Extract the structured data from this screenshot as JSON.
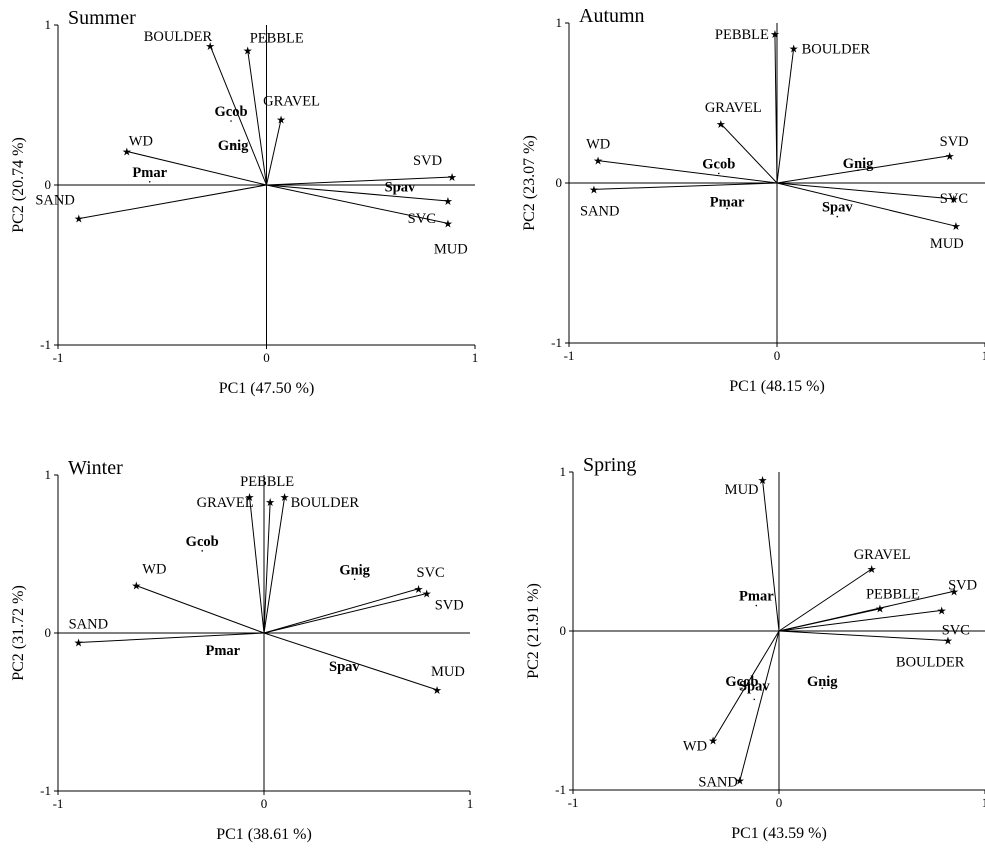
{
  "chart_data": [
    {
      "type": "scatter",
      "title": "Summer",
      "xlabel": "PC1 (47.50 %)",
      "ylabel": "PC2 (20.74 %)",
      "xlim": [
        -1,
        1
      ],
      "ylim": [
        -1,
        1
      ],
      "xticks": [
        "-1",
        "0",
        "1"
      ],
      "yticks": [
        "-1",
        "0",
        "1"
      ],
      "grid": false,
      "variables": [
        {
          "name": "BOULDER",
          "x": -0.27,
          "y": 0.87
        },
        {
          "name": "PEBBLE",
          "x": -0.09,
          "y": 0.84
        },
        {
          "name": "GRAVEL",
          "x": 0.07,
          "y": 0.41
        },
        {
          "name": "WD",
          "x": -0.67,
          "y": 0.21
        },
        {
          "name": "SAND",
          "x": -0.9,
          "y": -0.21
        },
        {
          "name": "SVD",
          "x": 0.89,
          "y": 0.05
        },
        {
          "name": "SVC",
          "x": 0.87,
          "y": -0.1
        },
        {
          "name": "MUD",
          "x": 0.87,
          "y": -0.24
        }
      ],
      "species": [
        {
          "name": "Gcob",
          "x": -0.17,
          "y": 0.4
        },
        {
          "name": "Gnig",
          "x": -0.16,
          "y": 0.25
        },
        {
          "name": "Pmar",
          "x": -0.56,
          "y": 0.02
        },
        {
          "name": "Spav",
          "x": 0.64,
          "y": -0.01
        }
      ]
    },
    {
      "type": "scatter",
      "title": "Autumn",
      "xlabel": "PC1 (48.15 %)",
      "ylabel": "PC2 (23.07 %)",
      "xlim": [
        -1,
        1
      ],
      "ylim": [
        -1,
        1
      ],
      "xticks": [
        "-1",
        "0",
        "1"
      ],
      "yticks": [
        "-1",
        "0",
        "1"
      ],
      "grid": false,
      "variables": [
        {
          "name": "PEBBLE",
          "x": -0.01,
          "y": 0.93
        },
        {
          "name": "BOULDER",
          "x": 0.08,
          "y": 0.84
        },
        {
          "name": "GRAVEL",
          "x": -0.27,
          "y": 0.37
        },
        {
          "name": "WD",
          "x": -0.86,
          "y": 0.14
        },
        {
          "name": "SAND",
          "x": -0.88,
          "y": -0.04
        },
        {
          "name": "SVD",
          "x": 0.83,
          "y": 0.17
        },
        {
          "name": "SVC",
          "x": 0.85,
          "y": -0.1
        },
        {
          "name": "MUD",
          "x": 0.86,
          "y": -0.27
        }
      ],
      "species": [
        {
          "name": "Gcob",
          "x": -0.28,
          "y": 0.06
        },
        {
          "name": "Gnig",
          "x": 0.39,
          "y": 0.08
        },
        {
          "name": "Pmar",
          "x": -0.24,
          "y": -0.16
        },
        {
          "name": "Spav",
          "x": 0.29,
          "y": -0.21
        }
      ]
    },
    {
      "type": "scatter",
      "title": "Winter",
      "xlabel": "PC1 (38.61 %)",
      "ylabel": "PC2 (31.72 %)",
      "xlim": [
        -1,
        1
      ],
      "ylim": [
        -1,
        1
      ],
      "xticks": [
        "-1",
        "0",
        "1"
      ],
      "yticks": [
        "-1",
        "0",
        "1"
      ],
      "grid": false,
      "variables": [
        {
          "name": "PEBBLE",
          "x": 0.03,
          "y": 0.83
        },
        {
          "name": "GRAVEL",
          "x": -0.07,
          "y": 0.86
        },
        {
          "name": "BOULDER",
          "x": 0.1,
          "y": 0.86
        },
        {
          "name": "WD",
          "x": -0.62,
          "y": 0.3
        },
        {
          "name": "SAND",
          "x": -0.9,
          "y": -0.06
        },
        {
          "name": "SVC",
          "x": 0.75,
          "y": 0.28
        },
        {
          "name": "SVD",
          "x": 0.79,
          "y": 0.25
        },
        {
          "name": "MUD",
          "x": 0.84,
          "y": -0.36
        }
      ],
      "species": [
        {
          "name": "Gcob",
          "x": -0.3,
          "y": 0.52
        },
        {
          "name": "Gnig",
          "x": 0.44,
          "y": 0.34
        },
        {
          "name": "Pmar",
          "x": -0.2,
          "y": -0.1
        },
        {
          "name": "Spav",
          "x": 0.39,
          "y": -0.21
        }
      ]
    },
    {
      "type": "scatter",
      "title": "Spring",
      "xlabel": "PC1 (43.59 %)",
      "ylabel": "PC2 (21.91 %)",
      "xlim": [
        -1,
        1
      ],
      "ylim": [
        -1,
        1
      ],
      "xticks": [
        "-1",
        "0",
        "1"
      ],
      "yticks": [
        "-1",
        "0",
        "1"
      ],
      "grid": false,
      "variables": [
        {
          "name": "MUD",
          "x": -0.08,
          "y": 0.95
        },
        {
          "name": "GRAVEL",
          "x": 0.45,
          "y": 0.39
        },
        {
          "name": "SVD",
          "x": 0.85,
          "y": 0.25
        },
        {
          "name": "PEBBLE",
          "x": 0.49,
          "y": 0.14
        },
        {
          "name": "SVC",
          "x": 0.79,
          "y": 0.13
        },
        {
          "name": "BOULDER",
          "x": 0.82,
          "y": -0.06
        },
        {
          "name": "WD",
          "x": -0.32,
          "y": -0.69
        },
        {
          "name": "SAND",
          "x": -0.19,
          "y": -0.94
        }
      ],
      "species": [
        {
          "name": "Pmar",
          "x": -0.11,
          "y": 0.16
        },
        {
          "name": "Gcob",
          "x": -0.18,
          "y": -0.36
        },
        {
          "name": "Spav",
          "x": -0.12,
          "y": -0.43
        },
        {
          "name": "Gnig",
          "x": 0.21,
          "y": -0.36
        }
      ]
    }
  ]
}
